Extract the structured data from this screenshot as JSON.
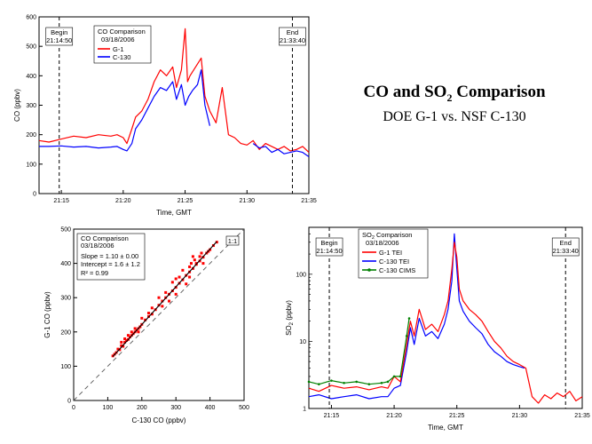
{
  "slide": {
    "title_pre": "CO and SO",
    "title_sub": "2",
    "title_post": " Comparison",
    "subtitle": "DOE G-1 vs. NSF C-130"
  },
  "chart_data": [
    {
      "id": "co_timeseries",
      "type": "line",
      "xlabel": "Time, GMT",
      "ylabel": "CO   (ppbv)",
      "x_ticks": [
        "21:15",
        "21:20",
        "21:25",
        "21:30",
        "21:35"
      ],
      "x_minutes": [
        15,
        20,
        25,
        30,
        35
      ],
      "xlim": [
        13.2,
        35
      ],
      "ylim": [
        0,
        600
      ],
      "y_ticks": [
        0,
        100,
        200,
        300,
        400,
        500,
        600
      ],
      "legend_title": "CO Comparison",
      "legend_date": "03/18/2006",
      "begin_label": "Begin",
      "begin_time": "21:14:50",
      "begin_minute": 14.83,
      "end_label": "End",
      "end_time": "21:33:40",
      "end_minute": 33.67,
      "series": [
        {
          "name": "G-1",
          "color": "#ff0000",
          "x": [
            13.2,
            14,
            15,
            16,
            17,
            18,
            19,
            19.5,
            20,
            20.3,
            20.7,
            21,
            21.5,
            22,
            22.5,
            23,
            23.5,
            24,
            24.3,
            24.7,
            25,
            25.1,
            25.2,
            25.4,
            25.7,
            26,
            26.3,
            26.6,
            27,
            27.5,
            28,
            28.5,
            29,
            29.5,
            30,
            30.5,
            31,
            31.5,
            32,
            32.5,
            33,
            33.5,
            34,
            34.5,
            35
          ],
          "y": [
            180,
            175,
            185,
            195,
            190,
            200,
            195,
            200,
            190,
            170,
            220,
            260,
            280,
            320,
            380,
            420,
            400,
            430,
            360,
            420,
            560,
            480,
            380,
            400,
            420,
            440,
            460,
            330,
            280,
            240,
            360,
            200,
            190,
            170,
            165,
            180,
            150,
            170,
            160,
            150,
            160,
            145,
            150,
            160,
            140
          ]
        },
        {
          "name": "C-130",
          "color": "#0000ff",
          "x": [
            13.2,
            14,
            15,
            16,
            17,
            18,
            19,
            19.5,
            20,
            20.3,
            20.7,
            21,
            21.5,
            22,
            22.5,
            23,
            23.5,
            24,
            24.3,
            24.7,
            25,
            25.3,
            25.6,
            26,
            26.3,
            26.6,
            27
          ],
          "y": [
            160,
            160,
            162,
            158,
            160,
            155,
            158,
            160,
            150,
            145,
            170,
            220,
            250,
            290,
            330,
            360,
            350,
            380,
            320,
            370,
            300,
            330,
            350,
            370,
            420,
            300,
            230
          ]
        },
        {
          "name": "C-130 (post)",
          "color": "#0000ff",
          "legend": false,
          "x": [
            30.5,
            31,
            31.5,
            32,
            32.5,
            33,
            33.5,
            34,
            34.5,
            35
          ],
          "y": [
            170,
            155,
            160,
            140,
            150,
            135,
            140,
            145,
            140,
            125
          ]
        }
      ]
    },
    {
      "id": "co_scatter",
      "type": "scatter",
      "xlabel": "C-130 CO   (ppbv)",
      "ylabel": "G-1 CO   (ppbv)",
      "xlim": [
        0,
        500
      ],
      "ylim": [
        0,
        500
      ],
      "ticks": [
        0,
        100,
        200,
        300,
        400,
        500
      ],
      "legend_title": "CO Comparison",
      "legend_date": "03/18/2006",
      "slope_text": "Slope = 1.10 ± 0.00",
      "intercept_text": "Intercept = 1.6 ± 1.2",
      "r2_text": "R² = 0.99",
      "one_to_one_label": "1:1",
      "fit": {
        "slope": 1.1,
        "intercept": 1.6,
        "x_range": [
          115,
          420
        ]
      },
      "color": "#ff0000",
      "points": [
        [
          115,
          130
        ],
        [
          120,
          135
        ],
        [
          125,
          140
        ],
        [
          130,
          150
        ],
        [
          135,
          148
        ],
        [
          140,
          160
        ],
        [
          145,
          158
        ],
        [
          150,
          170
        ],
        [
          155,
          175
        ],
        [
          160,
          178
        ],
        [
          165,
          185
        ],
        [
          170,
          190
        ],
        [
          175,
          195
        ],
        [
          180,
          200
        ],
        [
          185,
          205
        ],
        [
          190,
          210
        ],
        [
          195,
          215
        ],
        [
          200,
          222
        ],
        [
          170,
          200
        ],
        [
          160,
          190
        ],
        [
          180,
          210
        ],
        [
          190,
          200
        ],
        [
          150,
          180
        ],
        [
          140,
          170
        ],
        [
          200,
          240
        ],
        [
          210,
          235
        ],
        [
          220,
          245
        ],
        [
          230,
          252
        ],
        [
          240,
          265
        ],
        [
          250,
          278
        ],
        [
          260,
          290
        ],
        [
          270,
          300
        ],
        [
          280,
          310
        ],
        [
          290,
          320
        ],
        [
          300,
          330
        ],
        [
          310,
          342
        ],
        [
          320,
          352
        ],
        [
          330,
          365
        ],
        [
          340,
          375
        ],
        [
          350,
          385
        ],
        [
          360,
          397
        ],
        [
          370,
          407
        ],
        [
          380,
          418
        ],
        [
          390,
          430
        ],
        [
          400,
          440
        ],
        [
          410,
          452
        ],
        [
          420,
          462
        ],
        [
          250,
          300
        ],
        [
          270,
          315
        ],
        [
          290,
          345
        ],
        [
          320,
          380
        ],
        [
          340,
          390
        ],
        [
          350,
          420
        ],
        [
          360,
          400
        ],
        [
          300,
          310
        ],
        [
          280,
          290
        ],
        [
          330,
          340
        ],
        [
          370,
          420
        ],
        [
          380,
          400
        ],
        [
          340,
          360
        ],
        [
          260,
          275
        ],
        [
          355,
          410
        ],
        [
          345,
          400
        ],
        [
          375,
          430
        ],
        [
          395,
          435
        ],
        [
          310,
          360
        ],
        [
          300,
          355
        ],
        [
          230,
          270
        ],
        [
          220,
          255
        ]
      ]
    },
    {
      "id": "so2_timeseries",
      "type": "line",
      "log_y": true,
      "xlabel": "Time, GMT",
      "ylabel_pre": "SO",
      "ylabel_sub": "2",
      "ylabel_post": "  (ppbv)",
      "x_ticks": [
        "21:15",
        "21:20",
        "21:25",
        "21:30",
        "21:35"
      ],
      "x_minutes": [
        15,
        20,
        25,
        30,
        35
      ],
      "xlim": [
        13.2,
        35
      ],
      "ylim": [
        1,
        500
      ],
      "y_ticks": [
        1,
        10,
        100
      ],
      "legend_title_pre": "SO",
      "legend_title_sub": "2",
      "legend_title_post": " Comparison",
      "legend_date": "03/18/2006",
      "begin_label": "Begin",
      "begin_time": "21:14:50",
      "begin_minute": 14.83,
      "end_label": "End",
      "end_time": "21:33:40",
      "end_minute": 33.67,
      "series": [
        {
          "name": "G-1 TEI",
          "color": "#ff0000",
          "x": [
            13.2,
            14,
            15,
            16,
            17,
            18,
            19,
            19.5,
            20,
            20.5,
            21,
            21.3,
            21.6,
            22,
            22.5,
            23,
            23.5,
            24,
            24.3,
            24.6,
            24.8,
            25,
            25.2,
            25.5,
            26,
            26.5,
            27,
            27.5,
            28,
            28.5,
            29,
            29.5,
            30,
            30.5,
            31,
            31.5,
            32,
            32.5,
            33,
            33.5,
            34,
            34.5,
            35
          ],
          "y": [
            2,
            1.8,
            2.2,
            2,
            2.1,
            1.9,
            2.1,
            2,
            3,
            2.5,
            9,
            20,
            12,
            30,
            15,
            18,
            14,
            25,
            40,
            120,
            300,
            180,
            60,
            40,
            30,
            25,
            20,
            14,
            10,
            8,
            6,
            5,
            4.5,
            4,
            1.5,
            1.2,
            1.6,
            1.4,
            1.7,
            1.5,
            1.8,
            1.3,
            1.5
          ]
        },
        {
          "name": "C-130 TEI",
          "color": "#0000ff",
          "x": [
            13.2,
            14,
            15,
            16,
            17,
            18,
            19,
            19.5,
            20,
            20.5,
            21,
            21.3,
            21.6,
            22,
            22.5,
            23,
            23.5,
            24,
            24.3,
            24.6,
            24.8,
            25,
            25.2,
            25.5,
            26,
            26.5,
            27,
            27.5,
            28,
            28.5,
            29,
            29.5,
            30,
            30.4
          ],
          "y": [
            1.5,
            1.6,
            1.4,
            1.5,
            1.6,
            1.4,
            1.5,
            1.5,
            2,
            2.2,
            7,
            16,
            9,
            22,
            12,
            14,
            11,
            18,
            30,
            80,
            400,
            120,
            40,
            28,
            20,
            16,
            13,
            9,
            7,
            6,
            5,
            4.5,
            4.2,
            4
          ]
        },
        {
          "name": "C-130 CIMS",
          "color": "#008000",
          "x": [
            13.2,
            14,
            15,
            16,
            17,
            18,
            19,
            19.5,
            20,
            20.5,
            21,
            21.2
          ],
          "y": [
            2.5,
            2.3,
            2.6,
            2.4,
            2.5,
            2.3,
            2.4,
            2.5,
            3,
            3,
            12,
            22
          ]
        }
      ]
    }
  ]
}
